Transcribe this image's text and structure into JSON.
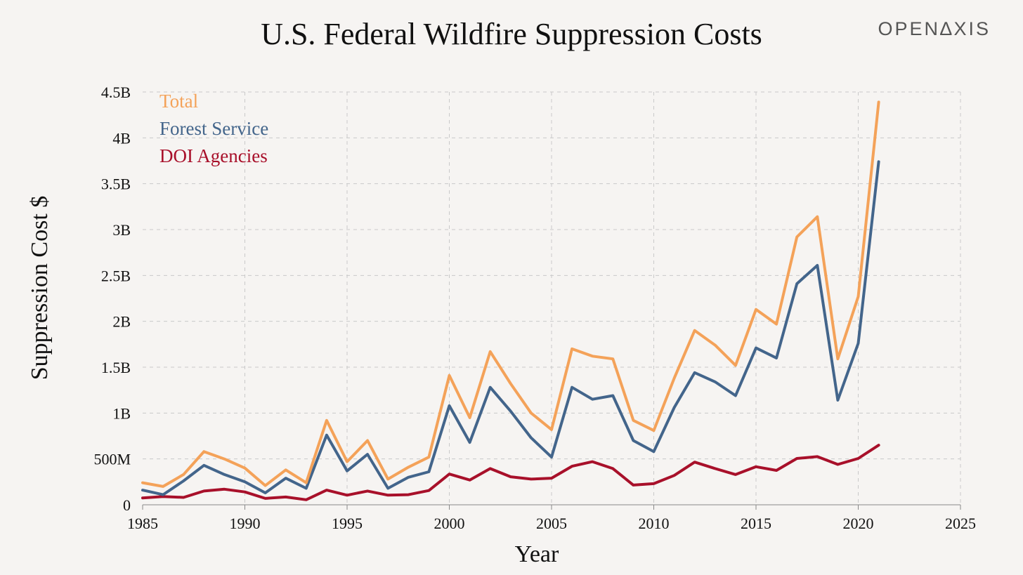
{
  "title": "U.S. Federal Wildfire Suppression Costs",
  "brand": "OPEN∆XIS",
  "chart_data": {
    "type": "line",
    "xlabel": "Year",
    "ylabel": "Suppression Cost $",
    "xlim": [
      1985,
      2025
    ],
    "ylim": [
      0,
      4500000000
    ],
    "x_ticks": [
      1985,
      1990,
      1995,
      2000,
      2005,
      2010,
      2015,
      2020,
      2025
    ],
    "x_tick_labels": [
      "1985",
      "1990",
      "1995",
      "2000",
      "2005",
      "2010",
      "2015",
      "2020",
      "2025"
    ],
    "y_ticks": [
      0,
      500000000,
      1000000000,
      1500000000,
      2000000000,
      2500000000,
      3000000000,
      3500000000,
      4000000000,
      4500000000
    ],
    "y_tick_labels": [
      "0",
      "500M",
      "1B",
      "1.5B",
      "2B",
      "2.5B",
      "3B",
      "3.5B",
      "4B",
      "4.5B"
    ],
    "grid": true,
    "legend_position": "top-left",
    "x": [
      1985,
      1986,
      1987,
      1988,
      1989,
      1990,
      1991,
      1992,
      1993,
      1994,
      1995,
      1996,
      1997,
      1998,
      1999,
      2000,
      2001,
      2002,
      2003,
      2004,
      2005,
      2006,
      2007,
      2008,
      2009,
      2010,
      2011,
      2012,
      2013,
      2014,
      2015,
      2016,
      2017,
      2018,
      2019,
      2020,
      2021
    ],
    "series": [
      {
        "name": "Total",
        "color": "#f4a259",
        "values": [
          240000000,
          200000000,
          330000000,
          580000000,
          500000000,
          400000000,
          210000000,
          380000000,
          240000000,
          920000000,
          470000000,
          700000000,
          280000000,
          410000000,
          520000000,
          1410000000,
          950000000,
          1670000000,
          1320000000,
          1000000000,
          820000000,
          1700000000,
          1620000000,
          1590000000,
          920000000,
          810000000,
          1380000000,
          1900000000,
          1740000000,
          1520000000,
          2130000000,
          1970000000,
          2920000000,
          3140000000,
          1590000000,
          2270000000,
          4390000000
        ]
      },
      {
        "name": "Forest Service",
        "color": "#43658b",
        "values": [
          160000000,
          110000000,
          260000000,
          430000000,
          330000000,
          250000000,
          130000000,
          290000000,
          180000000,
          760000000,
          370000000,
          550000000,
          180000000,
          300000000,
          360000000,
          1080000000,
          680000000,
          1280000000,
          1020000000,
          730000000,
          520000000,
          1280000000,
          1150000000,
          1190000000,
          700000000,
          580000000,
          1060000000,
          1440000000,
          1340000000,
          1190000000,
          1710000000,
          1600000000,
          2410000000,
          2610000000,
          1140000000,
          1760000000,
          3740000000
        ]
      },
      {
        "name": "DOI Agencies",
        "color": "#a8102a",
        "values": [
          75000000,
          90000000,
          80000000,
          150000000,
          170000000,
          140000000,
          70000000,
          85000000,
          55000000,
          160000000,
          105000000,
          150000000,
          105000000,
          110000000,
          155000000,
          335000000,
          270000000,
          395000000,
          305000000,
          280000000,
          290000000,
          420000000,
          470000000,
          395000000,
          215000000,
          230000000,
          320000000,
          465000000,
          395000000,
          330000000,
          415000000,
          375000000,
          505000000,
          525000000,
          440000000,
          505000000,
          650000000
        ]
      }
    ]
  }
}
